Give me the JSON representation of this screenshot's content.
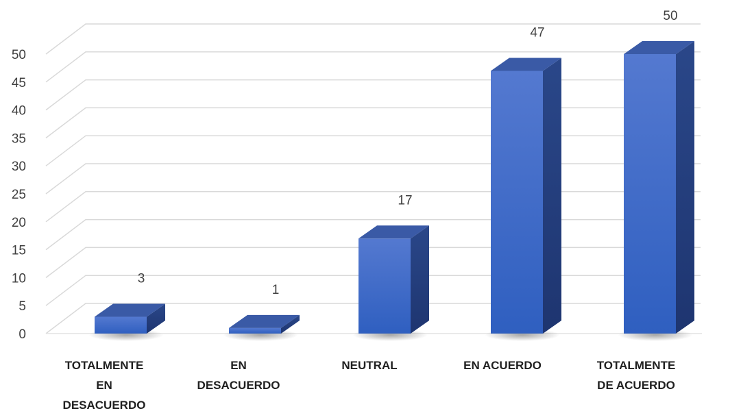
{
  "chart_data": {
    "type": "bar",
    "categories": [
      [
        "TOTALMENTE",
        "EN",
        "DESACUERDO"
      ],
      [
        "EN",
        "DESACUERDO"
      ],
      [
        "NEUTRAL"
      ],
      [
        "EN ACUERDO"
      ],
      [
        "TOTALMENTE",
        "DE ACUERDO"
      ]
    ],
    "values": [
      3,
      1,
      17,
      47,
      50
    ],
    "yticks": [
      "0",
      "5",
      "10",
      "15",
      "20",
      "25",
      "30",
      "35",
      "40",
      "45",
      "50"
    ],
    "ylim": [
      0,
      50
    ],
    "grid": true,
    "legend": "none",
    "colors": {
      "front_top": "#5479d0",
      "front_bottom": "#2f5fc0",
      "side": "#233d7d",
      "top": "#3a5aa6",
      "grid": "#d9d9d9",
      "floor": "#e3e3e3"
    }
  }
}
